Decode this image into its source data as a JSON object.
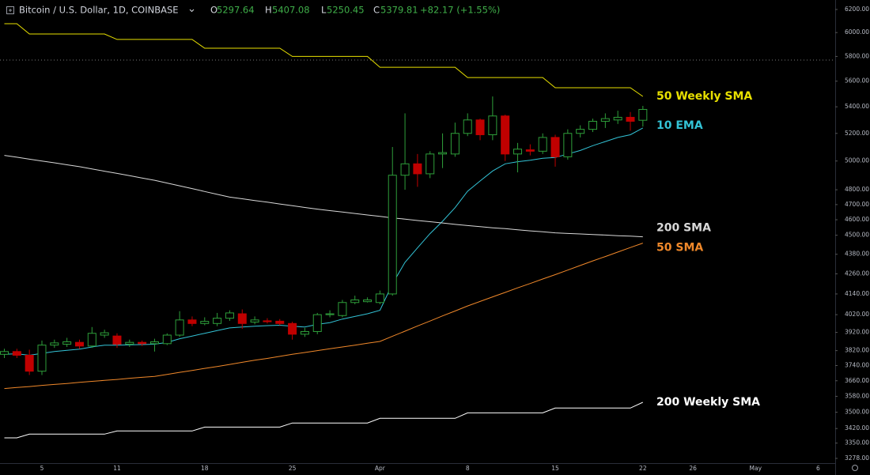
{
  "header": {
    "symbol": "Bitcoin / U.S. Dollar, 1D, COINBASE",
    "ohlc_labels": [
      "O",
      "H",
      "L",
      "C"
    ],
    "change": "+82.17 (+1.55%)"
  },
  "chart_data": {
    "type": "candlestick",
    "log_scale": true,
    "grid": false,
    "up_color": "#2e9e3a",
    "down_color": "#c00000",
    "crosshair_y": 5770,
    "categories": [
      null,
      null,
      null,
      "5",
      null,
      null,
      null,
      null,
      null,
      "11",
      null,
      null,
      null,
      null,
      null,
      null,
      "18",
      null,
      null,
      null,
      null,
      null,
      null,
      "25",
      null,
      null,
      null,
      null,
      null,
      null,
      "Apr",
      null,
      null,
      null,
      null,
      null,
      null,
      "8",
      null,
      null,
      null,
      null,
      null,
      null,
      "15",
      null,
      null,
      null,
      null,
      null,
      null,
      "22",
      null,
      null,
      null,
      "26",
      null,
      null,
      null,
      null,
      "May",
      null,
      null,
      null,
      null,
      "6",
      null
    ],
    "open": [
      3800,
      3815,
      3795,
      3710,
      3850,
      3855,
      3865,
      3845,
      3905,
      3900,
      3855,
      3865,
      3858,
      3858,
      3905,
      3990,
      3970,
      3970,
      4000,
      4025,
      3978,
      3985,
      3983,
      3970,
      3910,
      3925,
      4020,
      4015,
      4090,
      4095,
      4090,
      4140,
      4900,
      4980,
      4910,
      5050,
      5050,
      5200,
      5300,
      5190,
      5330,
      5050,
      5080,
      5070,
      5170,
      5030,
      5200,
      5230,
      5290,
      5300,
      5320,
      5297.64,
      null,
      null,
      null,
      null,
      null,
      null,
      null,
      null,
      null,
      null,
      null,
      null,
      null,
      null,
      null
    ],
    "high": [
      3830,
      3830,
      3825,
      3875,
      3880,
      3890,
      3880,
      3950,
      3935,
      3915,
      3880,
      3875,
      3885,
      3915,
      4040,
      4010,
      4005,
      4030,
      4045,
      4050,
      4010,
      4000,
      3995,
      3980,
      3945,
      4030,
      4045,
      4105,
      4130,
      4120,
      4160,
      5100,
      5350,
      5050,
      5070,
      5200,
      5280,
      5350,
      5310,
      5480,
      5340,
      5130,
      5120,
      5200,
      5190,
      5230,
      5260,
      5310,
      5350,
      5370,
      5360,
      5407.08,
      null,
      null,
      null,
      null,
      null,
      null,
      null,
      null,
      null,
      null,
      null,
      null,
      null,
      null,
      null
    ],
    "low": [
      3780,
      3780,
      3690,
      3690,
      3835,
      3840,
      3830,
      3835,
      3890,
      3835,
      3840,
      3845,
      3815,
      3850,
      3895,
      3955,
      3960,
      3955,
      3985,
      3940,
      3965,
      3970,
      3960,
      3880,
      3895,
      3910,
      4005,
      4005,
      4080,
      4090,
      4080,
      4130,
      4800,
      4820,
      4880,
      4950,
      5030,
      5180,
      5150,
      5150,
      5000,
      4920,
      5040,
      5050,
      4960,
      5010,
      5170,
      5210,
      5240,
      5270,
      5220,
      5250.45,
      null,
      null,
      null,
      null,
      null,
      null,
      null,
      null,
      null,
      null,
      null,
      null,
      null,
      null,
      null
    ],
    "close": [
      3815,
      3795,
      3710,
      3850,
      3862,
      3868,
      3845,
      3915,
      3918,
      3855,
      3865,
      3858,
      3868,
      3905,
      3990,
      3970,
      3982,
      4000,
      4030,
      3970,
      3990,
      3980,
      3970,
      3910,
      3925,
      4020,
      4025,
      4090,
      4105,
      4105,
      4140,
      4900,
      4980,
      4910,
      5050,
      5060,
      5200,
      5300,
      5190,
      5330,
      5050,
      5085,
      5070,
      5170,
      5030,
      5200,
      5230,
      5290,
      5310,
      5320,
      5290,
      5379.81,
      null,
      null,
      null,
      null,
      null,
      null,
      null,
      null,
      null,
      null,
      null,
      null,
      null,
      null,
      null
    ],
    "series": [
      {
        "name": "50 Weekly SMA",
        "color": "#e8e000",
        "values": [
          6076,
          6076,
          5988,
          5988,
          5988,
          5988,
          5988,
          5988,
          5988,
          5942,
          5942,
          5942,
          5942,
          5942,
          5942,
          5942,
          5868,
          5868,
          5868,
          5868,
          5868,
          5868,
          5868,
          5800,
          5800,
          5800,
          5800,
          5800,
          5800,
          5800,
          5712,
          5712,
          5712,
          5712,
          5712,
          5712,
          5712,
          5629,
          5629,
          5629,
          5629,
          5629,
          5629,
          5629,
          5548,
          5548,
          5548,
          5548,
          5548,
          5548,
          5548,
          5480,
          null,
          null,
          null,
          null,
          null,
          null,
          null,
          null,
          null,
          null,
          null,
          null,
          null,
          null,
          null
        ]
      },
      {
        "name": "10 EMA",
        "color": "#33c3d6",
        "values": [
          3800,
          3803,
          3795,
          3805,
          3815,
          3822,
          3828,
          3840,
          3850,
          3850,
          3852,
          3853,
          3855,
          3865,
          3885,
          3900,
          3915,
          3930,
          3945,
          3950,
          3955,
          3958,
          3960,
          3955,
          3950,
          3965,
          3975,
          3995,
          4010,
          4025,
          4045,
          4200,
          4330,
          4420,
          4510,
          4590,
          4680,
          4790,
          4860,
          4930,
          4980,
          4995,
          5005,
          5020,
          5025,
          5050,
          5075,
          5110,
          5140,
          5170,
          5190,
          5240,
          null,
          null,
          null,
          null,
          null,
          null,
          null,
          null,
          null,
          null,
          null,
          null,
          null,
          null,
          null
        ]
      },
      {
        "name": "200 SMA",
        "color": "#d8d8d8",
        "values": [
          5040,
          5027,
          5013,
          5000,
          4987,
          4973,
          4960,
          4944,
          4928,
          4913,
          4897,
          4881,
          4865,
          4846,
          4827,
          4808,
          4788,
          4769,
          4750,
          4739,
          4727,
          4716,
          4704,
          4693,
          4681,
          4670,
          4660,
          4651,
          4641,
          4631,
          4622,
          4612,
          4604,
          4595,
          4587,
          4579,
          4570,
          4562,
          4555,
          4548,
          4542,
          4535,
          4528,
          4522,
          4515,
          4511,
          4508,
          4504,
          4501,
          4497,
          4494,
          4490,
          null,
          null,
          null,
          null,
          null,
          null,
          null,
          null,
          null,
          null,
          null,
          null,
          null,
          null,
          null
        ]
      },
      {
        "name": "50 SMA",
        "color": "#f0882a",
        "values": [
          3620,
          3625,
          3630,
          3636,
          3641,
          3646,
          3652,
          3657,
          3662,
          3667,
          3673,
          3678,
          3683,
          3693,
          3704,
          3714,
          3725,
          3735,
          3746,
          3757,
          3768,
          3778,
          3789,
          3800,
          3810,
          3820,
          3830,
          3840,
          3850,
          3860,
          3870,
          3899,
          3927,
          3956,
          3984,
          4013,
          4041,
          4070,
          4096,
          4123,
          4149,
          4176,
          4202,
          4229,
          4255,
          4283,
          4311,
          4339,
          4366,
          4394,
          4422,
          4450,
          null,
          null,
          null,
          null,
          null,
          null,
          null,
          null,
          null,
          null,
          null,
          null,
          null,
          null,
          null
        ]
      },
      {
        "name": "200 Weekly SMA",
        "color": "#ffffff",
        "values": [
          3375,
          3375,
          3393,
          3393,
          3393,
          3393,
          3393,
          3393,
          3393,
          3408,
          3408,
          3408,
          3408,
          3408,
          3408,
          3408,
          3427,
          3427,
          3427,
          3427,
          3427,
          3427,
          3427,
          3447,
          3447,
          3447,
          3447,
          3447,
          3447,
          3447,
          3470,
          3470,
          3470,
          3470,
          3470,
          3470,
          3470,
          3497,
          3497,
          3497,
          3497,
          3497,
          3497,
          3497,
          3521,
          3521,
          3521,
          3521,
          3521,
          3521,
          3521,
          3550,
          null,
          null,
          null,
          null,
          null,
          null,
          null,
          null,
          null,
          null,
          null,
          null,
          null,
          null,
          null
        ]
      }
    ],
    "ylim": [
      3256,
      6284
    ],
    "yticks": [
      {
        "value": 6200,
        "label": "6200.00"
      },
      {
        "value": 6000,
        "label": "6000.00"
      },
      {
        "value": 5800,
        "label": "5800.00"
      },
      {
        "value": 5600,
        "label": "5600.00"
      },
      {
        "value": 5400,
        "label": "5400.00"
      },
      {
        "value": 5200,
        "label": "5200.00"
      },
      {
        "value": 5000,
        "label": "5000.00"
      },
      {
        "value": 4800,
        "label": "4800.00"
      },
      {
        "value": 4700,
        "label": "4700.00"
      },
      {
        "value": 4600,
        "label": "4600.00"
      },
      {
        "value": 4500,
        "label": "4500.00"
      },
      {
        "value": 4380,
        "label": "4380.00"
      },
      {
        "value": 4260,
        "label": "4260.00"
      },
      {
        "value": 4140,
        "label": "4140.00"
      },
      {
        "value": 4020,
        "label": "4020.00"
      },
      {
        "value": 3920,
        "label": "3920.00"
      },
      {
        "value": 3820,
        "label": "3820.00"
      },
      {
        "value": 3740,
        "label": "3740.00"
      },
      {
        "value": 3660,
        "label": "3660.00"
      },
      {
        "value": 3580,
        "label": "3580.00"
      },
      {
        "value": 3500,
        "label": "3500.00"
      },
      {
        "value": 3420,
        "label": "3420.00"
      },
      {
        "value": 3350,
        "label": "3350.00"
      },
      {
        "value": 3278,
        "label": "3278.00"
      }
    ]
  }
}
